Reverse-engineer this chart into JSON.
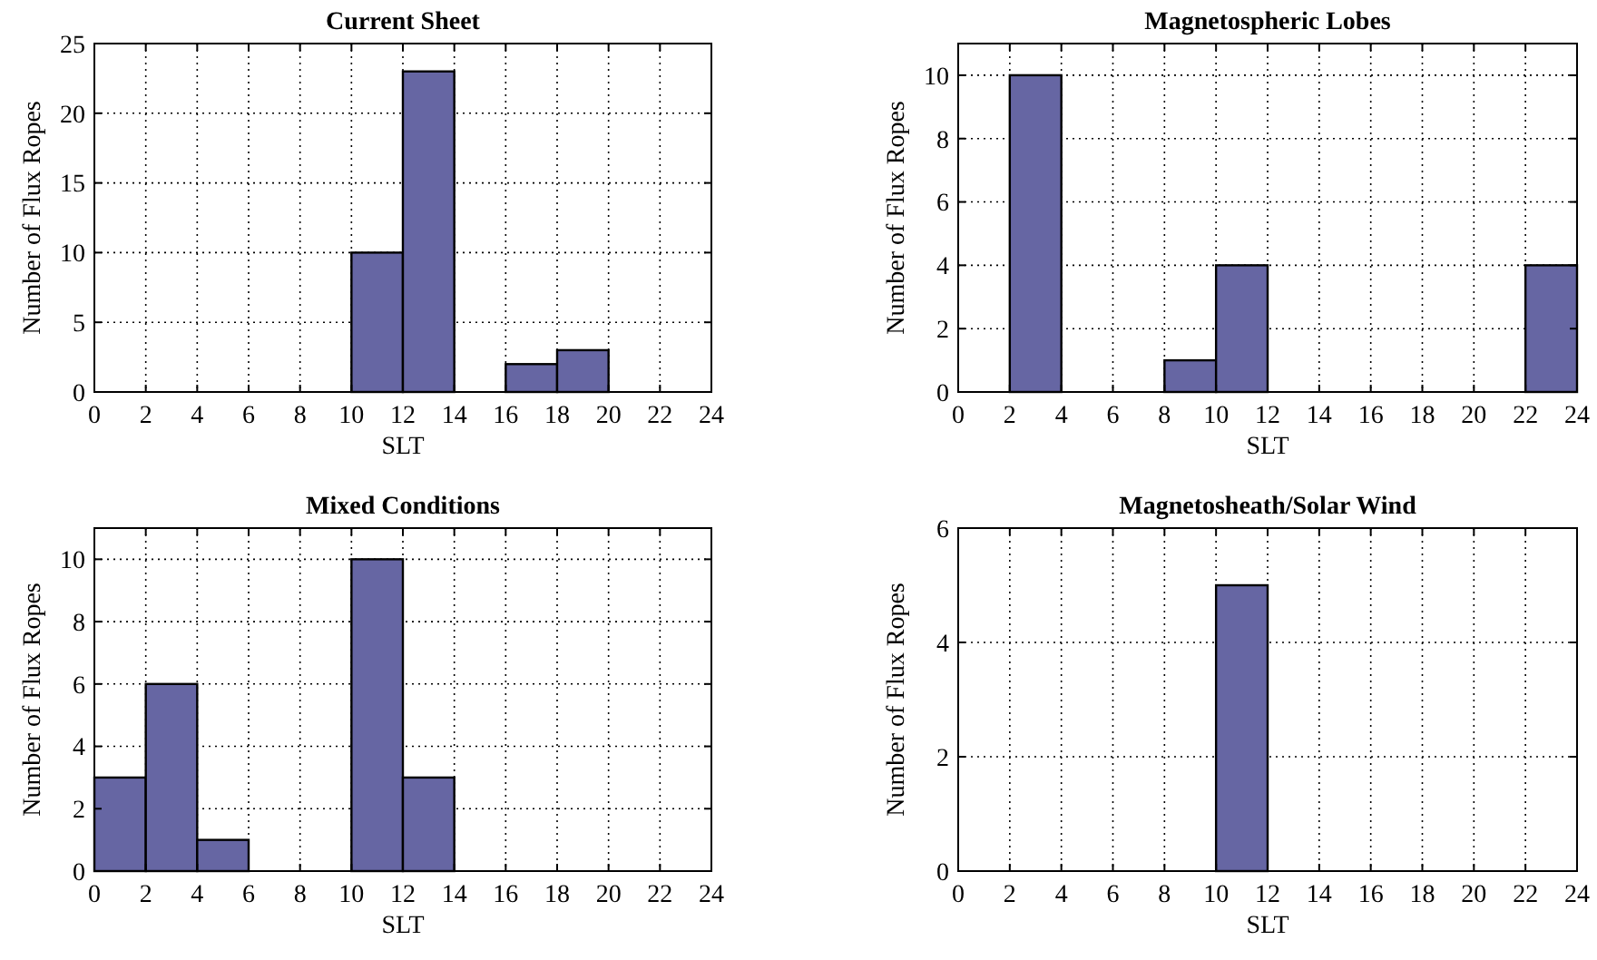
{
  "chart_data": [
    {
      "type": "histogram",
      "title": "Current Sheet",
      "xlabel": "SLT",
      "ylabel": "Number of Flux Ropes",
      "bins": [
        0,
        2,
        4,
        6,
        8,
        10,
        12,
        14,
        16,
        18,
        20,
        22,
        24
      ],
      "values": [
        0,
        0,
        0,
        0,
        0,
        10,
        23,
        0,
        2,
        3,
        0,
        0
      ],
      "color": "#6666a3",
      "xlim": [
        0,
        24
      ],
      "xticks": [
        0,
        2,
        4,
        6,
        8,
        10,
        12,
        14,
        16,
        18,
        20,
        22,
        24
      ],
      "ylim": [
        0,
        25
      ],
      "yticks": [
        0,
        5,
        10,
        15,
        20,
        25
      ],
      "grid": true
    },
    {
      "type": "histogram",
      "title": "Magnetospheric Lobes",
      "xlabel": "SLT",
      "ylabel": "Number of Flux Ropes",
      "bins": [
        0,
        2,
        4,
        6,
        8,
        10,
        12,
        14,
        16,
        18,
        20,
        22,
        24
      ],
      "values": [
        0,
        10,
        0,
        0,
        1,
        4,
        0,
        0,
        0,
        0,
        0,
        4
      ],
      "color": "#6666a3",
      "xlim": [
        0,
        24
      ],
      "xticks": [
        0,
        2,
        4,
        6,
        8,
        10,
        12,
        14,
        16,
        18,
        20,
        22,
        24
      ],
      "ylim": [
        0,
        11
      ],
      "yticks": [
        0,
        2,
        4,
        6,
        8,
        10
      ],
      "grid": true
    },
    {
      "type": "histogram",
      "title": "Mixed Conditions",
      "xlabel": "SLT",
      "ylabel": "Number of Flux Ropes",
      "bins": [
        0,
        2,
        4,
        6,
        8,
        10,
        12,
        14,
        16,
        18,
        20,
        22,
        24
      ],
      "values": [
        3,
        6,
        1,
        0,
        0,
        10,
        3,
        0,
        0,
        0,
        0,
        0
      ],
      "color": "#6666a3",
      "xlim": [
        0,
        24
      ],
      "xticks": [
        0,
        2,
        4,
        6,
        8,
        10,
        12,
        14,
        16,
        18,
        20,
        22,
        24
      ],
      "ylim": [
        0,
        11
      ],
      "yticks": [
        0,
        2,
        4,
        6,
        8,
        10
      ],
      "grid": true
    },
    {
      "type": "histogram",
      "title": "Magnetosheath/Solar Wind",
      "xlabel": "SLT",
      "ylabel": "Number of Flux Ropes",
      "bins": [
        0,
        2,
        4,
        6,
        8,
        10,
        12,
        14,
        16,
        18,
        20,
        22,
        24
      ],
      "values": [
        0,
        0,
        0,
        0,
        0,
        5,
        0,
        0,
        0,
        0,
        0,
        0
      ],
      "color": "#6666a3",
      "xlim": [
        0,
        24
      ],
      "xticks": [
        0,
        2,
        4,
        6,
        8,
        10,
        12,
        14,
        16,
        18,
        20,
        22,
        24
      ],
      "ylim": [
        0,
        6
      ],
      "yticks": [
        0,
        2,
        4,
        6
      ],
      "grid": true
    }
  ]
}
